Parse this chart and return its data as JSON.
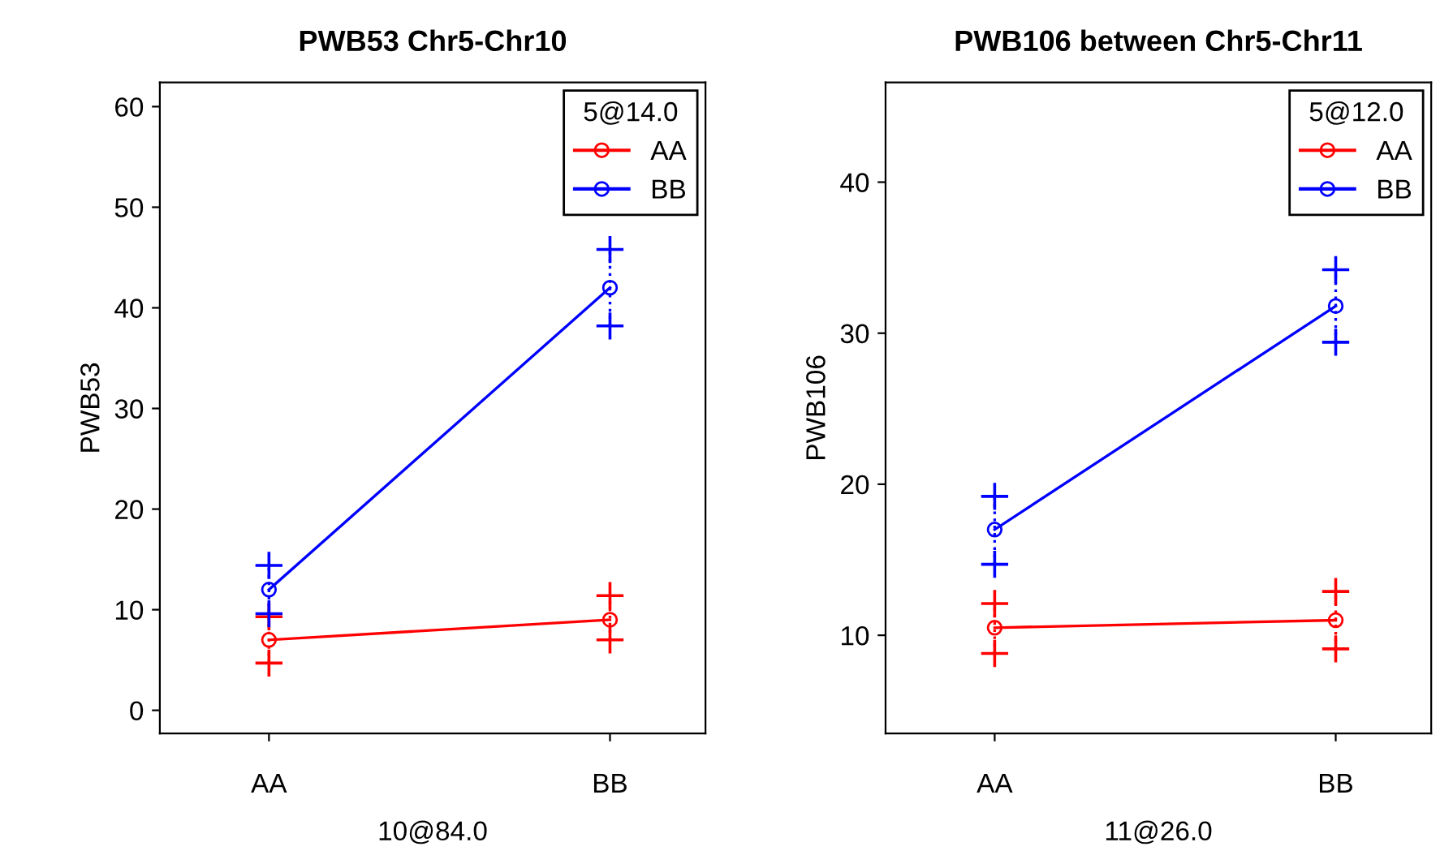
{
  "chart_data": [
    {
      "type": "line",
      "title": "PWB53 Chr5-Chr10",
      "xlabel": "10@84.0",
      "ylabel": "PWB53",
      "legend_title": "5@14.0",
      "categories": [
        "AA",
        "BB"
      ],
      "series": [
        {
          "name": "AA",
          "color": "#ff0000",
          "values": [
            7,
            9
          ],
          "errors": [
            [
              4.7,
              9.3
            ],
            [
              7,
              11.4
            ]
          ]
        },
        {
          "name": "BB",
          "color": "#0000ff",
          "values": [
            12,
            42
          ],
          "errors": [
            [
              9.6,
              14.4
            ],
            [
              38.2,
              45.8
            ]
          ]
        }
      ],
      "ylim": [
        -2.3,
        62.4
      ],
      "yticks": [
        0,
        10,
        20,
        30,
        40,
        50,
        60
      ],
      "grid": false,
      "legend": "top right",
      "marker": "circle",
      "line_style": "solid"
    },
    {
      "type": "line",
      "title": "PWB106 between Chr5-Chr11",
      "xlabel": "11@26.0",
      "ylabel": "PWB106",
      "legend_title": "5@12.0",
      "categories": [
        "AA",
        "BB"
      ],
      "series": [
        {
          "name": "AA",
          "color": "#ff0000",
          "values": [
            10.5,
            11
          ],
          "errors": [
            [
              8.8,
              12.1
            ],
            [
              9.1,
              12.9
            ]
          ]
        },
        {
          "name": "BB",
          "color": "#0000ff",
          "values": [
            17,
            31.8
          ],
          "errors": [
            [
              14.7,
              19.2
            ],
            [
              29.4,
              34.2
            ]
          ]
        }
      ],
      "ylim": [
        3.5,
        46.6
      ],
      "yticks": [
        10,
        20,
        30,
        40
      ],
      "grid": false,
      "legend": "top right",
      "marker": "circle",
      "line_style": "solid"
    }
  ]
}
